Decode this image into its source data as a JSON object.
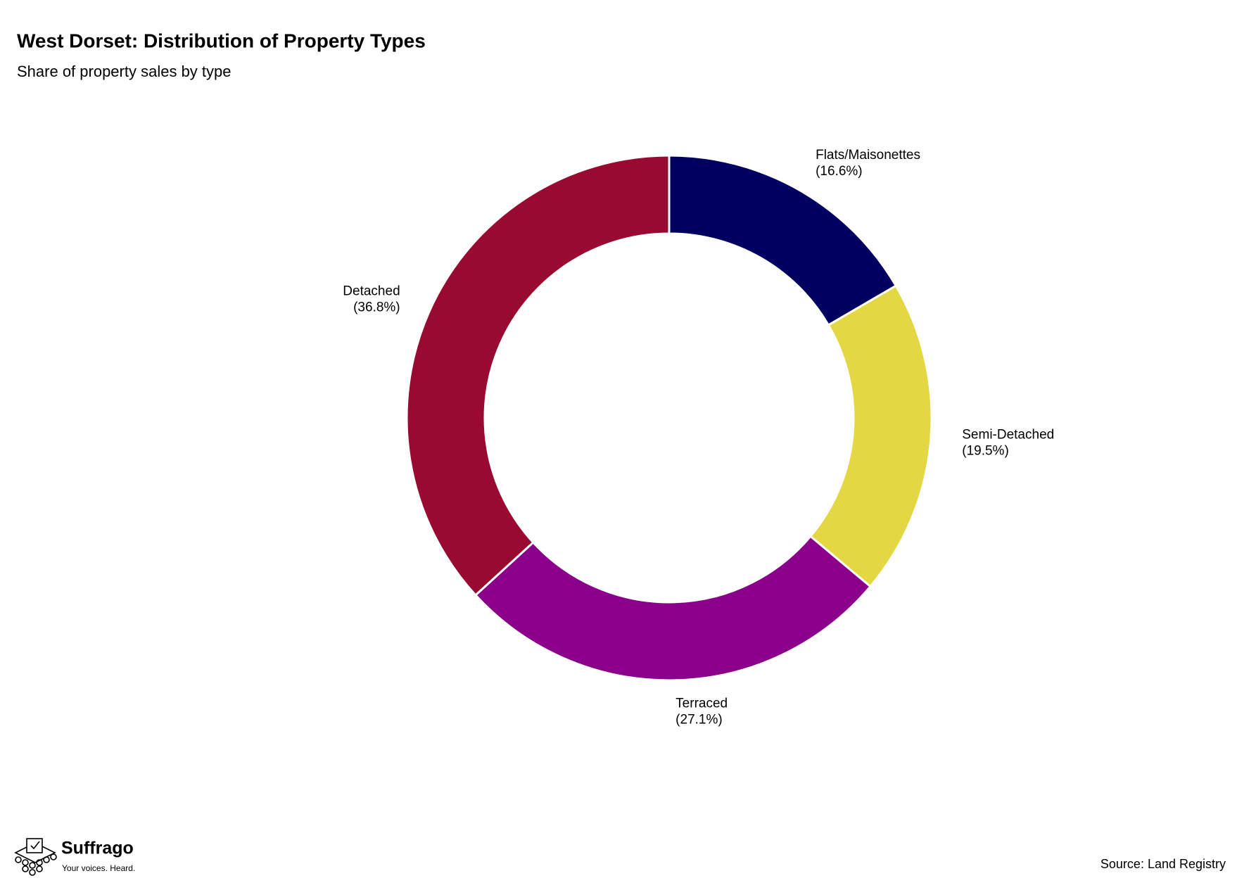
{
  "chart_data": {
    "type": "donut",
    "title": "West Dorset: Distribution of Property Types",
    "subtitle": "Share of property sales by type",
    "categories": [
      "Flats/Maisonettes",
      "Semi-Detached",
      "Terraced",
      "Detached"
    ],
    "values": [
      16.6,
      19.5,
      27.1,
      36.8
    ],
    "value_labels": [
      "(16.6%)",
      "(19.5%)",
      "(27.1%)",
      "(36.8%)"
    ],
    "colors": [
      "#000060",
      "#e3d844",
      "#8b008b",
      "#990a30"
    ],
    "source": "Source: Land Registry"
  },
  "branding": {
    "name": "Suffrago",
    "tagline": "Your voices. Heard."
  }
}
